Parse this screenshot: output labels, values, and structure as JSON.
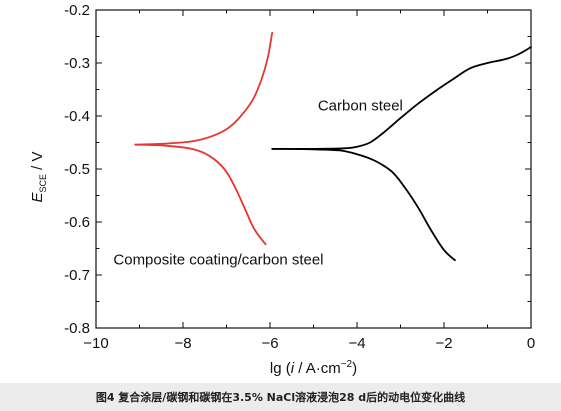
{
  "chart_data": {
    "type": "line",
    "xlabel_parts": {
      "pre": "lg (",
      "italic": "i",
      "mid": " / A·cm",
      "sup": "−2",
      "post": ")"
    },
    "ylabel_parts": {
      "italic": "E",
      "sub": "SCE",
      "post": " / V"
    },
    "xlim": [
      -10,
      0
    ],
    "ylim": [
      -0.8,
      -0.2
    ],
    "x_ticks": [
      -10,
      -8,
      -6,
      -4,
      -2,
      0
    ],
    "x_tick_labels": [
      "−10",
      "−8",
      "−6",
      "−4",
      "−2",
      "0"
    ],
    "y_ticks": [
      -0.2,
      -0.3,
      -0.4,
      -0.5,
      -0.6,
      -0.7,
      -0.8
    ],
    "y_tick_labels": [
      "-0.2",
      "-0.3",
      "-0.4",
      "-0.5",
      "-0.6",
      "-0.7",
      "-0.8"
    ],
    "grid": false,
    "series": [
      {
        "name": "Carbon steel",
        "color": "#000000",
        "branches": [
          [
            [
              -5.95,
              -0.462
            ],
            [
              -5.0,
              -0.462
            ],
            [
              -4.3,
              -0.461
            ],
            [
              -4.0,
              -0.458
            ],
            [
              -3.7,
              -0.45
            ],
            [
              -3.4,
              -0.432
            ],
            [
              -3.0,
              -0.404
            ],
            [
              -2.6,
              -0.377
            ],
            [
              -2.2,
              -0.353
            ],
            [
              -1.8,
              -0.331
            ],
            [
              -1.4,
              -0.31
            ],
            [
              -1.0,
              -0.3
            ],
            [
              -0.6,
              -0.293
            ],
            [
              -0.3,
              -0.284
            ],
            [
              0.0,
              -0.27
            ]
          ],
          [
            [
              -5.95,
              -0.462
            ],
            [
              -5.0,
              -0.463
            ],
            [
              -4.4,
              -0.465
            ],
            [
              -4.0,
              -0.472
            ],
            [
              -3.6,
              -0.484
            ],
            [
              -3.2,
              -0.505
            ],
            [
              -2.9,
              -0.535
            ],
            [
              -2.6,
              -0.572
            ],
            [
              -2.3,
              -0.615
            ],
            [
              -2.0,
              -0.653
            ],
            [
              -1.75,
              -0.672
            ]
          ]
        ]
      },
      {
        "name": "Composite coating/carbon steel",
        "color": "#e8352f",
        "branches": [
          [
            [
              -9.1,
              -0.454
            ],
            [
              -8.4,
              -0.452
            ],
            [
              -7.8,
              -0.448
            ],
            [
              -7.4,
              -0.44
            ],
            [
              -7.0,
              -0.425
            ],
            [
              -6.7,
              -0.403
            ],
            [
              -6.4,
              -0.37
            ],
            [
              -6.2,
              -0.332
            ],
            [
              -6.05,
              -0.29
            ],
            [
              -5.95,
              -0.243
            ]
          ],
          [
            [
              -9.1,
              -0.454
            ],
            [
              -8.4,
              -0.456
            ],
            [
              -7.8,
              -0.462
            ],
            [
              -7.4,
              -0.475
            ],
            [
              -7.05,
              -0.5
            ],
            [
              -6.8,
              -0.535
            ],
            [
              -6.55,
              -0.58
            ],
            [
              -6.35,
              -0.615
            ],
            [
              -6.1,
              -0.642
            ]
          ]
        ]
      }
    ],
    "annotations": [
      {
        "text": "Carbon steel",
        "x": -4.9,
        "y": -0.39
      },
      {
        "text": "Composite coating/carbon steel",
        "x": -9.6,
        "y": -0.68
      }
    ]
  },
  "caption": "图4   复合涂层/碳钢和碳钢在3.5% NaCl溶液浸泡28 d后的动电位变化曲线"
}
